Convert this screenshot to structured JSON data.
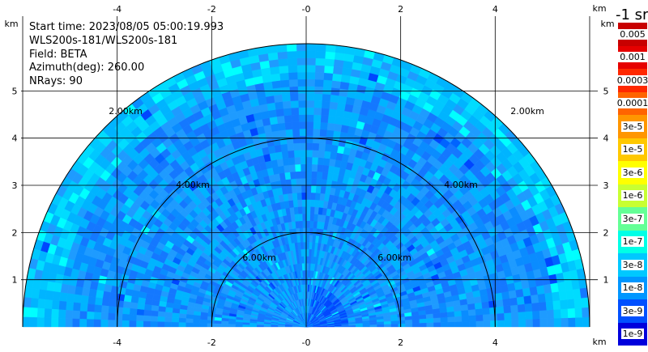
{
  "info": {
    "start_time": "Start time: 2023/08/05 05:00:19.993",
    "instrument": "WLS200s-181/WLS200s-181",
    "field": "Field: BETA",
    "azimuth": "Azimuth(deg): 260.00",
    "nrays": "NRays: 90"
  },
  "colorbar": {
    "unit": "-1 sr",
    "labels": [
      "0.005",
      "0.001",
      "0.0003",
      "0.0001",
      "3e-5",
      "1e-5",
      "3e-6",
      "1e-6",
      "3e-7",
      "1e-7",
      "3e-8",
      "1e-8",
      "3e-9",
      "1e-9"
    ],
    "colors": [
      "#c80000",
      "#e60000",
      "#ff2800",
      "#ff6400",
      "#ff9600",
      "#ffc800",
      "#ffff00",
      "#c8ff32",
      "#64ff96",
      "#00ffe6",
      "#00c8ff",
      "#0096ff",
      "#0050ff",
      "#0000dc"
    ]
  },
  "chart_data": {
    "type": "heatmap",
    "title": "",
    "xlabel": "km",
    "ylabel": "km",
    "xlim": [
      -6,
      6
    ],
    "ylim": [
      0,
      6
    ],
    "x_ticks": [
      "-4",
      "-2",
      "-0",
      "2",
      "4"
    ],
    "y_ticks": [
      "1",
      "2",
      "3",
      "4",
      "5"
    ],
    "range_rings_km": [
      2,
      6
    ],
    "range_ring_labels": [
      "2.00km",
      "4.00km",
      "6.00km"
    ],
    "grid": true,
    "colormap_colors": [
      "#00ffff",
      "#00dcff",
      "#00c8ff",
      "#00b4ff",
      "#1e9bff",
      "#0a8cff",
      "#1478ff",
      "#0064ff",
      "#0046ff"
    ]
  }
}
